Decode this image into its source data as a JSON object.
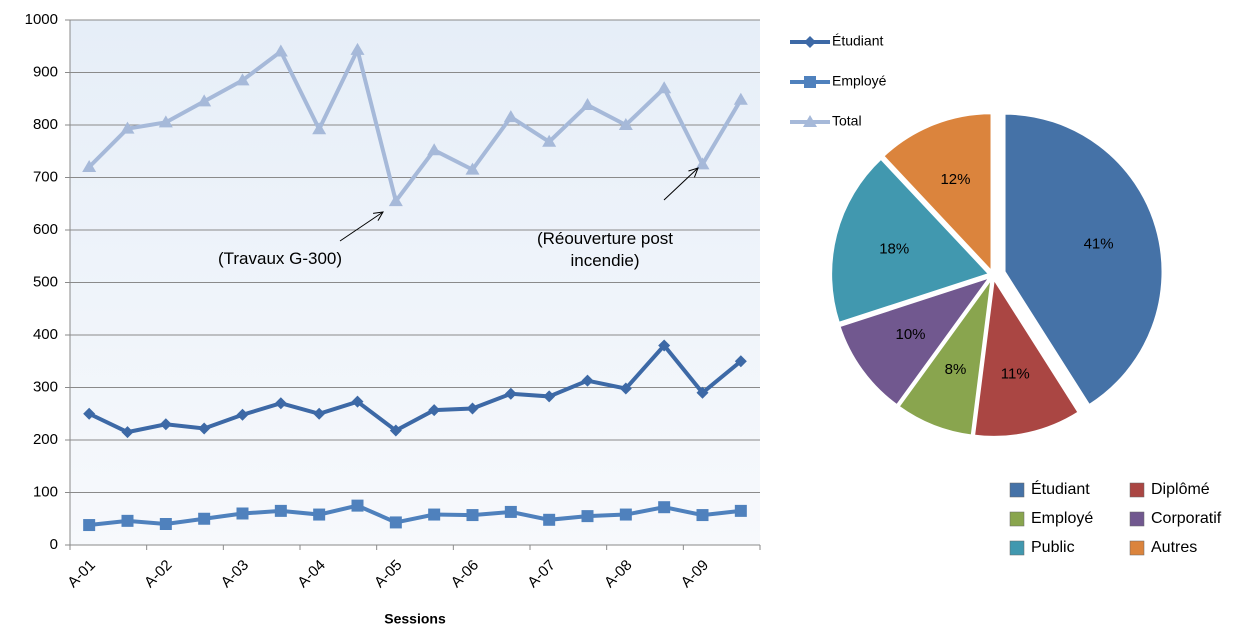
{
  "chart_data": [
    {
      "type": "line",
      "x_label": "Sessions",
      "categories": [
        "A-01",
        null,
        "A-02",
        null,
        "A-03",
        null,
        "A-04",
        null,
        "A-05",
        null,
        "A-06",
        null,
        "A-07",
        null,
        "A-08",
        null,
        "A-09",
        null
      ],
      "series": [
        {
          "name": "Étudiant",
          "color": "#3d69a6",
          "marker": "diamond",
          "values": [
            250,
            215,
            230,
            222,
            248,
            270,
            250,
            273,
            218,
            257,
            260,
            288,
            283,
            313,
            298,
            380,
            290,
            350
          ]
        },
        {
          "name": "Employé",
          "color": "#4f81bd",
          "marker": "square",
          "values": [
            38,
            46,
            40,
            50,
            60,
            65,
            58,
            75,
            43,
            58,
            57,
            63,
            48,
            55,
            58,
            72,
            57,
            65
          ]
        },
        {
          "name": "Total",
          "color": "#a6b9d9",
          "marker": "triangle",
          "values": [
            720,
            793,
            805,
            845,
            885,
            940,
            792,
            943,
            655,
            752,
            715,
            815,
            768,
            838,
            800,
            870,
            725,
            848
          ]
        }
      ],
      "ylim": [
        0,
        1000
      ],
      "yticks": [
        0,
        100,
        200,
        300,
        400,
        500,
        600,
        700,
        800,
        900,
        1000
      ],
      "grid": true,
      "legend": "right",
      "annotations": [
        "(Travaux G-300)",
        "(Réouverture post incendie)"
      ]
    },
    {
      "type": "pie",
      "categories": [
        "Étudiant",
        "Diplômé",
        "Employé",
        "Corporatif",
        "Public",
        "Autres"
      ],
      "values": [
        41,
        11,
        8,
        10,
        18,
        12
      ],
      "value_labels": [
        "41%",
        "11%",
        "8%",
        "10%",
        "18%",
        "12%"
      ],
      "colors": [
        "#4572a7",
        "#aa4643",
        "#89a54e",
        "#71588f",
        "#4198af",
        "#db843d"
      ],
      "legend": "bottom"
    }
  ]
}
